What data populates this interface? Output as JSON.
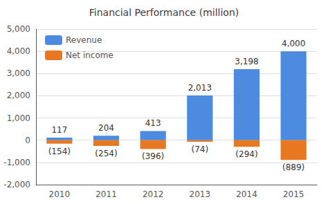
{
  "chart_data": {
    "type": "bar",
    "title": "Financial Performance (million)",
    "categories": [
      "2010",
      "2011",
      "2012",
      "2013",
      "2014",
      "2015"
    ],
    "series": [
      {
        "name": "Revenue",
        "color": "#4C8BE0",
        "values": [
          117,
          204,
          413,
          2013,
          3198,
          4000
        ],
        "value_labels": [
          "117",
          "204",
          "413",
          "2,013",
          "3,198",
          "4,000"
        ]
      },
      {
        "name": "Net income",
        "color": "#E87722",
        "values": [
          -154,
          -254,
          -396,
          -74,
          -294,
          -889
        ],
        "value_labels": [
          "(154)",
          "(254)",
          "(396)",
          "(74)",
          "(294)",
          "(889)"
        ]
      }
    ],
    "ylim": [
      -2000,
      5000
    ],
    "yticks": [
      {
        "value": -2000,
        "label": "-2,000"
      },
      {
        "value": -1000,
        "label": "-1,000"
      },
      0,
      {
        "value": 1000,
        "label": "1,000"
      },
      {
        "value": 2000,
        "label": "2,000"
      },
      {
        "value": 3000,
        "label": "3,000"
      },
      {
        "value": 4000,
        "label": "4,000"
      },
      {
        "value": 5000,
        "label": "5,000"
      }
    ],
    "grid": true,
    "legend": "upper left",
    "data_labels": true
  }
}
